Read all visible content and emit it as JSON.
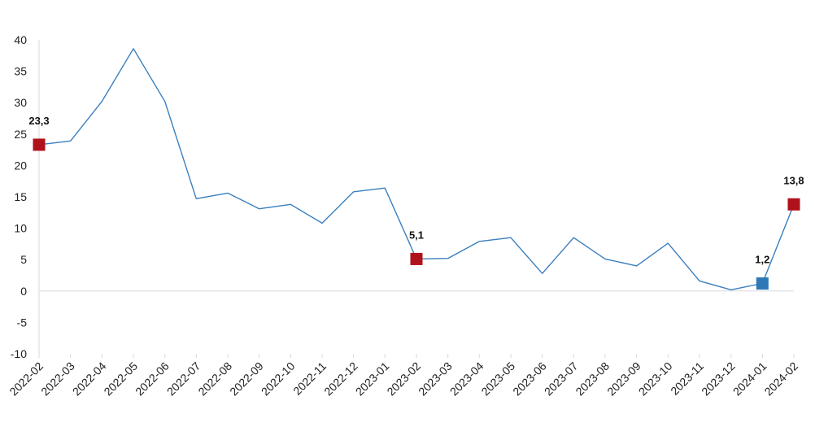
{
  "chart_data": {
    "type": "line",
    "title": "",
    "xlabel": "",
    "ylabel": "",
    "ylim": [
      -10,
      40
    ],
    "y_ticks": [
      "40",
      "35",
      "30",
      "25",
      "20",
      "15",
      "10",
      "5",
      "0",
      "-5",
      "-10"
    ],
    "grid": false,
    "categories": [
      "2022-02",
      "2022-03",
      "2022-04",
      "2022-05",
      "2022-06",
      "2022-07",
      "2022-08",
      "2022-09",
      "2022-10",
      "2022-11",
      "2022-12",
      "2023-01",
      "2023-02",
      "2023-03",
      "2023-04",
      "2023-05",
      "2023-06",
      "2023-07",
      "2023-08",
      "2023-09",
      "2023-10",
      "2023-11",
      "2023-12",
      "2024-01",
      "2024-02"
    ],
    "series": [
      {
        "values": [
          23.3,
          23.9,
          30.2,
          38.6,
          30.2,
          14.7,
          15.6,
          13.1,
          13.8,
          10.8,
          15.8,
          16.4,
          5.1,
          5.2,
          7.9,
          8.5,
          2.8,
          8.5,
          5.1,
          4.0,
          7.6,
          1.6,
          0.2,
          1.2,
          13.8
        ],
        "color": "#3a7fbf"
      }
    ],
    "highlighted_points": [
      {
        "category": "2022-02",
        "value": 23.3,
        "label": "23,3",
        "color": "#b0121b"
      },
      {
        "category": "2023-02",
        "value": 5.1,
        "label": "5,1",
        "color": "#b0121b"
      },
      {
        "category": "2024-01",
        "value": 1.2,
        "label": "1,2",
        "color": "#2f78b7"
      },
      {
        "category": "2024-02",
        "value": 13.8,
        "label": "13,8",
        "color": "#b0121b"
      }
    ],
    "colors": {
      "line": "#3a7fbf",
      "marker_red": "#b0121b",
      "marker_blue": "#2f78b7",
      "axis": "#d9d9d9"
    }
  }
}
